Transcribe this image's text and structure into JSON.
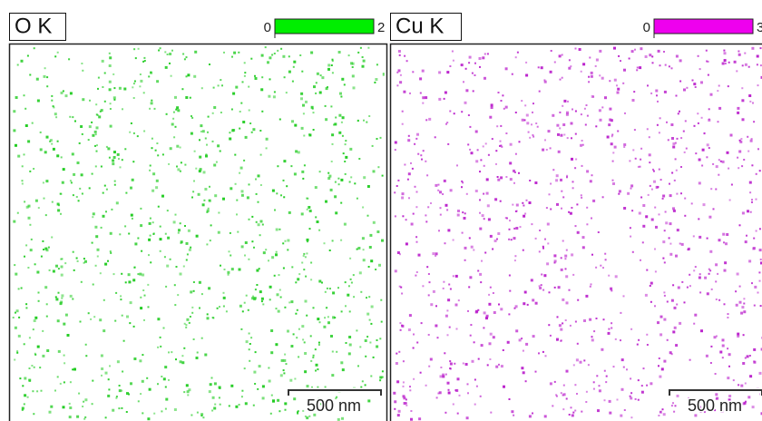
{
  "panels": [
    {
      "label": "O K",
      "color": "#22cc22",
      "bar_color": "#00ee00",
      "scale_min": 0,
      "scale_max": 2,
      "scale_bar": "500 nm"
    },
    {
      "label": "Cu K",
      "color": "#bb22cc",
      "bar_color": "#ee00ee",
      "scale_min": 0,
      "scale_max": 3,
      "scale_bar": "500 nm"
    }
  ]
}
